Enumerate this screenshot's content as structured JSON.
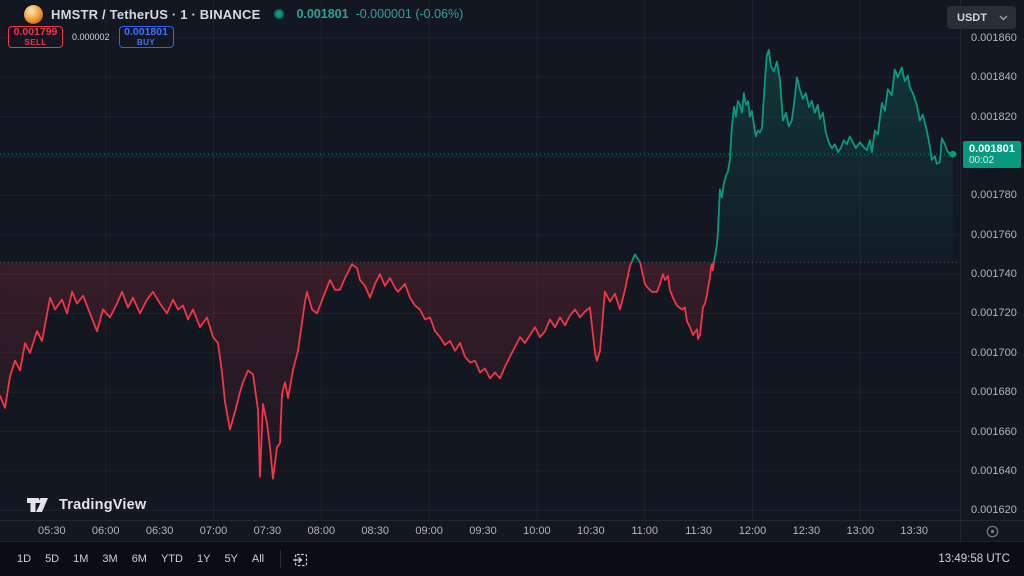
{
  "header": {
    "symbol_title": "HMSTR / TetherUS · 1 · BINANCE",
    "last_price": "0.001801",
    "change": "-0.000001 (-0.06%)",
    "icons": {
      "logo": "hamster-logo-icon",
      "status": "market-status-dot"
    }
  },
  "order_panel": {
    "sell_price": "0.001799",
    "sell_label": "SELL",
    "spread": "0.000002",
    "buy_price": "0.001801",
    "buy_label": "BUY"
  },
  "top_right": {
    "currency": "USDT"
  },
  "price_scale": {
    "ticks": [
      "0.001860",
      "0.001840",
      "0.001820",
      "0.001780",
      "0.001760",
      "0.001740",
      "0.001720",
      "0.001700",
      "0.001680",
      "0.001660",
      "0.001640",
      "0.001620"
    ],
    "current": {
      "price": "0.001801",
      "countdown": "00:02"
    }
  },
  "time_scale": {
    "ticks": [
      "05:30",
      "06:00",
      "06:30",
      "07:00",
      "07:30",
      "08:00",
      "08:30",
      "09:00",
      "09:30",
      "10:00",
      "10:30",
      "11:00",
      "11:30",
      "12:00",
      "12:30",
      "13:00",
      "13:30"
    ]
  },
  "bottom_toolbar": {
    "ranges": [
      "1D",
      "5D",
      "1M",
      "3M",
      "6M",
      "YTD",
      "1Y",
      "5Y",
      "All"
    ],
    "clock": "13:49:58 UTC"
  },
  "brand": {
    "text": "TradingView"
  },
  "colors": {
    "up": "#089981",
    "down": "#f23645",
    "buy_blue": "#2962ff",
    "header_quote": "#27a599",
    "background": "#131722",
    "toolbar_bg": "#0b0d12",
    "axis_text": "#b2b5be"
  },
  "chart_data": {
    "type": "line",
    "title": "HMSTR / TetherUS 1-minute line chart (BINANCE)",
    "x_unit": "decimal_hours_utc",
    "x_range_hours": [
      5.02,
      13.91
    ],
    "price_unit": "USDT",
    "price_scale_factor": 1e-06,
    "y_axis_ticks_micro": [
      1860,
      1840,
      1820,
      1780,
      1760,
      1740,
      1720,
      1700,
      1680,
      1660,
      1640,
      1620
    ],
    "grid_hours": [
      6,
      7,
      8,
      9,
      10,
      11,
      12,
      13
    ],
    "baseline_price_micro": 1746,
    "last_price_micro": 1801,
    "legend": "teal above baseline, red below baseline",
    "points_micro": [
      [
        5.02,
        1678
      ],
      [
        5.066,
        1672
      ],
      [
        5.112,
        1688
      ],
      [
        5.159,
        1696
      ],
      [
        5.205,
        1691
      ],
      [
        5.252,
        1705
      ],
      [
        5.298,
        1700
      ],
      [
        5.363,
        1711
      ],
      [
        5.409,
        1706
      ],
      [
        5.484,
        1728
      ],
      [
        5.53,
        1722
      ],
      [
        5.595,
        1727
      ],
      [
        5.641,
        1720
      ],
      [
        5.688,
        1731
      ],
      [
        5.734,
        1725
      ],
      [
        5.79,
        1729
      ],
      [
        5.854,
        1720
      ],
      [
        5.919,
        1711
      ],
      [
        5.975,
        1722
      ],
      [
        6.04,
        1718
      ],
      [
        6.105,
        1725
      ],
      [
        6.151,
        1731
      ],
      [
        6.207,
        1723
      ],
      [
        6.253,
        1728
      ],
      [
        6.318,
        1720
      ],
      [
        6.383,
        1727
      ],
      [
        6.439,
        1731
      ],
      [
        6.504,
        1725
      ],
      [
        6.569,
        1720
      ],
      [
        6.624,
        1727
      ],
      [
        6.671,
        1722
      ],
      [
        6.717,
        1724
      ],
      [
        6.763,
        1717
      ],
      [
        6.81,
        1722
      ],
      [
        6.875,
        1713
      ],
      [
        6.94,
        1718
      ],
      [
        6.995,
        1708
      ],
      [
        7.042,
        1705
      ],
      [
        7.079,
        1690
      ],
      [
        7.107,
        1675
      ],
      [
        7.153,
        1661
      ],
      [
        7.199,
        1670
      ],
      [
        7.246,
        1680
      ],
      [
        7.274,
        1685
      ],
      [
        7.32,
        1691
      ],
      [
        7.366,
        1689
      ],
      [
        7.413,
        1671
      ],
      [
        7.431,
        1637
      ],
      [
        7.459,
        1674
      ],
      [
        7.496,
        1664
      ],
      [
        7.524,
        1652
      ],
      [
        7.552,
        1636
      ],
      [
        7.589,
        1652
      ],
      [
        7.617,
        1654
      ],
      [
        7.635,
        1679
      ],
      [
        7.663,
        1685
      ],
      [
        7.691,
        1677
      ],
      [
        7.737,
        1691
      ],
      [
        7.784,
        1701
      ],
      [
        7.849,
        1726
      ],
      [
        7.867,
        1731
      ],
      [
        7.914,
        1722
      ],
      [
        7.96,
        1720
      ],
      [
        8.016,
        1728
      ],
      [
        8.081,
        1737
      ],
      [
        8.127,
        1732
      ],
      [
        8.173,
        1732
      ],
      [
        8.22,
        1738
      ],
      [
        8.285,
        1745
      ],
      [
        8.331,
        1743
      ],
      [
        8.359,
        1737
      ],
      [
        8.405,
        1734
      ],
      [
        8.452,
        1728
      ],
      [
        8.498,
        1735
      ],
      [
        8.544,
        1740
      ],
      [
        8.591,
        1734
      ],
      [
        8.637,
        1738
      ],
      [
        8.684,
        1733
      ],
      [
        8.712,
        1731
      ],
      [
        8.776,
        1735
      ],
      [
        8.823,
        1728
      ],
      [
        8.869,
        1724
      ],
      [
        8.915,
        1722
      ],
      [
        8.962,
        1717
      ],
      [
        9.008,
        1718
      ],
      [
        9.055,
        1711
      ],
      [
        9.101,
        1708
      ],
      [
        9.147,
        1704
      ],
      [
        9.194,
        1706
      ],
      [
        9.24,
        1701
      ],
      [
        9.287,
        1705
      ],
      [
        9.333,
        1698
      ],
      [
        9.379,
        1695
      ],
      [
        9.426,
        1696
      ],
      [
        9.472,
        1690
      ],
      [
        9.518,
        1692
      ],
      [
        9.565,
        1687
      ],
      [
        9.611,
        1690
      ],
      [
        9.658,
        1687
      ],
      [
        9.704,
        1693
      ],
      [
        9.75,
        1698
      ],
      [
        9.797,
        1703
      ],
      [
        9.843,
        1708
      ],
      [
        9.889,
        1705
      ],
      [
        9.936,
        1709
      ],
      [
        9.982,
        1713
      ],
      [
        10.029,
        1708
      ],
      [
        10.075,
        1711
      ],
      [
        10.121,
        1717
      ],
      [
        10.168,
        1713
      ],
      [
        10.214,
        1718
      ],
      [
        10.261,
        1714
      ],
      [
        10.307,
        1719
      ],
      [
        10.353,
        1722
      ],
      [
        10.4,
        1718
      ],
      [
        10.446,
        1721
      ],
      [
        10.492,
        1723
      ],
      [
        10.539,
        1700
      ],
      [
        10.557,
        1696
      ],
      [
        10.585,
        1701
      ],
      [
        10.631,
        1731
      ],
      [
        10.678,
        1726
      ],
      [
        10.724,
        1730
      ],
      [
        10.77,
        1722
      ],
      [
        10.817,
        1732
      ],
      [
        10.863,
        1744
      ],
      [
        10.91,
        1750
      ],
      [
        10.956,
        1746
      ],
      [
        11.002,
        1735
      ],
      [
        11.03,
        1733
      ],
      [
        11.067,
        1731
      ],
      [
        11.114,
        1731
      ],
      [
        11.141,
        1735
      ],
      [
        11.169,
        1740
      ],
      [
        11.188,
        1737
      ],
      [
        11.216,
        1739
      ],
      [
        11.234,
        1732
      ],
      [
        11.262,
        1728
      ],
      [
        11.299,
        1724
      ],
      [
        11.346,
        1722
      ],
      [
        11.373,
        1723
      ],
      [
        11.392,
        1716
      ],
      [
        11.42,
        1713
      ],
      [
        11.448,
        1709
      ],
      [
        11.485,
        1712
      ],
      [
        11.494,
        1707
      ],
      [
        11.513,
        1709
      ],
      [
        11.54,
        1723
      ],
      [
        11.559,
        1725
      ],
      [
        11.577,
        1729
      ],
      [
        11.587,
        1733
      ],
      [
        11.605,
        1738
      ],
      [
        11.614,
        1743
      ],
      [
        11.624,
        1745
      ],
      [
        11.633,
        1742
      ],
      [
        11.642,
        1746
      ],
      [
        11.651,
        1749
      ],
      [
        11.67,
        1755
      ],
      [
        11.679,
        1761
      ],
      [
        11.698,
        1783
      ],
      [
        11.716,
        1779
      ],
      [
        11.735,
        1786
      ],
      [
        11.753,
        1790
      ],
      [
        11.772,
        1792
      ],
      [
        11.79,
        1798
      ],
      [
        11.809,
        1815
      ],
      [
        11.828,
        1825
      ],
      [
        11.846,
        1820
      ],
      [
        11.865,
        1828
      ],
      [
        11.883,
        1826
      ],
      [
        11.902,
        1822
      ],
      [
        11.92,
        1832
      ],
      [
        11.939,
        1826
      ],
      [
        11.957,
        1828
      ],
      [
        11.976,
        1820
      ],
      [
        11.994,
        1823
      ],
      [
        12.013,
        1816
      ],
      [
        12.031,
        1810
      ],
      [
        12.05,
        1813
      ],
      [
        12.068,
        1812
      ],
      [
        12.087,
        1814
      ],
      [
        12.115,
        1838
      ],
      [
        12.133,
        1851
      ],
      [
        12.152,
        1854
      ],
      [
        12.17,
        1846
      ],
      [
        12.198,
        1843
      ],
      [
        12.226,
        1848
      ],
      [
        12.254,
        1839
      ],
      [
        12.282,
        1818
      ],
      [
        12.31,
        1822
      ],
      [
        12.337,
        1815
      ],
      [
        12.365,
        1818
      ],
      [
        12.393,
        1830
      ],
      [
        12.412,
        1840
      ],
      [
        12.439,
        1834
      ],
      [
        12.467,
        1829
      ],
      [
        12.495,
        1832
      ],
      [
        12.523,
        1825
      ],
      [
        12.551,
        1828
      ],
      [
        12.578,
        1822
      ],
      [
        12.606,
        1826
      ],
      [
        12.625,
        1819
      ],
      [
        12.653,
        1822
      ],
      [
        12.68,
        1812
      ],
      [
        12.708,
        1807
      ],
      [
        12.736,
        1804
      ],
      [
        12.764,
        1806
      ],
      [
        12.792,
        1802
      ],
      [
        12.819,
        1804
      ],
      [
        12.847,
        1808
      ],
      [
        12.875,
        1806
      ],
      [
        12.903,
        1810
      ],
      [
        12.931,
        1807
      ],
      [
        12.959,
        1804
      ],
      [
        12.996,
        1807
      ],
      [
        13.024,
        1805
      ],
      [
        13.061,
        1803
      ],
      [
        13.088,
        1808
      ],
      [
        13.107,
        1802
      ],
      [
        13.135,
        1813
      ],
      [
        13.163,
        1811
      ],
      [
        13.2,
        1827
      ],
      [
        13.227,
        1823
      ],
      [
        13.255,
        1834
      ],
      [
        13.292,
        1831
      ],
      [
        13.32,
        1844
      ],
      [
        13.348,
        1840
      ],
      [
        13.385,
        1845
      ],
      [
        13.413,
        1838
      ],
      [
        13.441,
        1841
      ],
      [
        13.459,
        1835
      ],
      [
        13.487,
        1832
      ],
      [
        13.524,
        1826
      ],
      [
        13.552,
        1818
      ],
      [
        13.58,
        1821
      ],
      [
        13.617,
        1813
      ],
      [
        13.645,
        1805
      ],
      [
        13.663,
        1798
      ],
      [
        13.691,
        1800
      ],
      [
        13.71,
        1796
      ],
      [
        13.738,
        1797
      ],
      [
        13.756,
        1809
      ],
      [
        13.784,
        1806
      ],
      [
        13.812,
        1802
      ],
      [
        13.858,
        1801
      ]
    ]
  }
}
